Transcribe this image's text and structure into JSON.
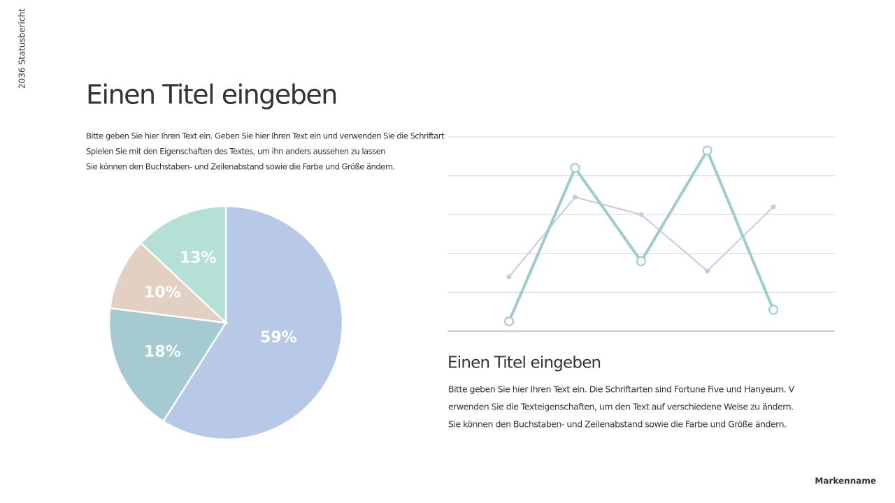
{
  "side_label": "2036 Statusbericht",
  "title": "Einen Titel eingeben",
  "intro": [
    "Bitte geben Sie hier Ihren Text ein. Geben Sie hier Ihren Text ein und verwenden Sie die Schriftart",
    "Spielen Sie mit den Eigenschaften des Textes, um ihn anders aussehen zu lassen",
    "Sie können den Buchstaben- und Zeilenabstand sowie die Farbe und Größe ändern."
  ],
  "subtitle": "Einen Titel eingeben",
  "body": [
    "Bitte geben Sie hier Ihren Text ein. Die Schriftarten sind Fortune Five und Hanyeum. V",
    "erwenden Sie die Texteigenschaften, um den Text auf verschiedene Weise zu ändern.",
    "Sie können den Buchstaben- und Zeilenabstand sowie die Farbe und Größe ändern."
  ],
  "brand": "Markenname",
  "chart_data": [
    {
      "type": "pie",
      "values": [
        59,
        18,
        10,
        13
      ],
      "value_labels": [
        "59%",
        "18%",
        "10%",
        "13%"
      ],
      "colors": [
        "#b8c9e8",
        "#a5cad2",
        "#e2d0c3",
        "#b5e0d6"
      ]
    },
    {
      "type": "line",
      "categories": [
        null,
        null,
        null,
        null,
        null
      ],
      "series": [
        {
          "color": "#9fcbcc",
          "values": [
            0.25,
            4.2,
            1.8,
            4.65,
            0.55
          ]
        },
        {
          "color": "#c3c9e6",
          "values": [
            1.4,
            3.45,
            3.0,
            1.55,
            3.2
          ]
        }
      ],
      "ylim": [
        0,
        5
      ],
      "yticks": [
        0,
        1,
        2,
        3,
        4,
        5
      ],
      "grid": true
    }
  ]
}
